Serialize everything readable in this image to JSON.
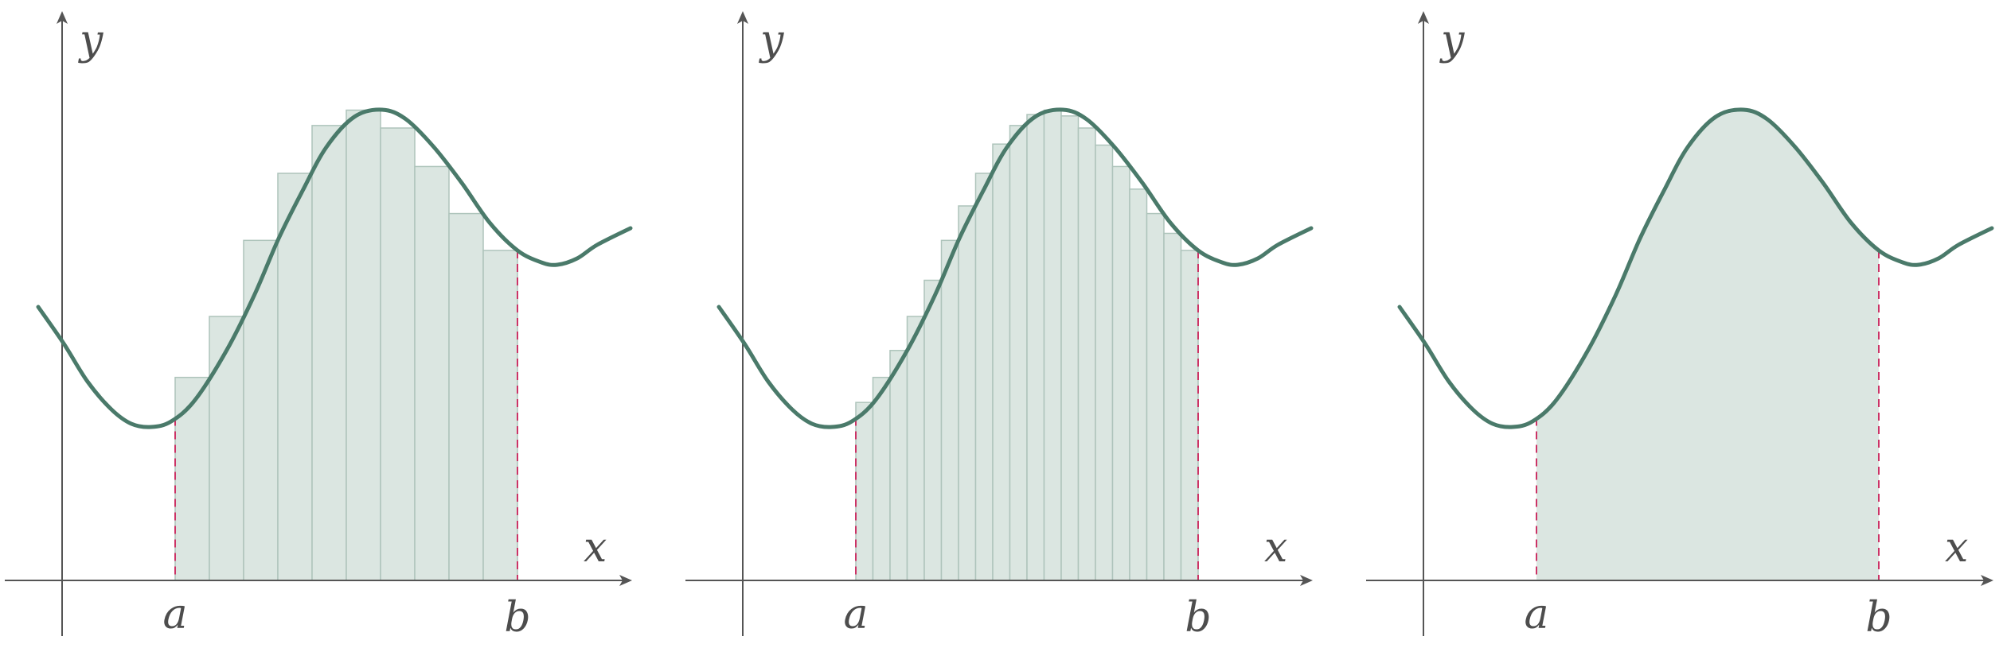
{
  "colors": {
    "axis": "#555555",
    "curve": "#4a7a6a",
    "fill": "#dbe6e1",
    "bar_stroke": "#aec4bb",
    "bound": "#cc3366"
  },
  "axes": {
    "x_label": "x",
    "y_label": "y"
  },
  "bounds": {
    "a_label": "a",
    "b_label": "b"
  },
  "panels": [
    {
      "id": "riemann-coarse",
      "type": "riemann-sum",
      "rectangles": 10
    },
    {
      "id": "riemann-fine",
      "type": "riemann-sum",
      "rectangles": 20
    },
    {
      "id": "exact-area",
      "type": "area-under-curve"
    }
  ]
}
